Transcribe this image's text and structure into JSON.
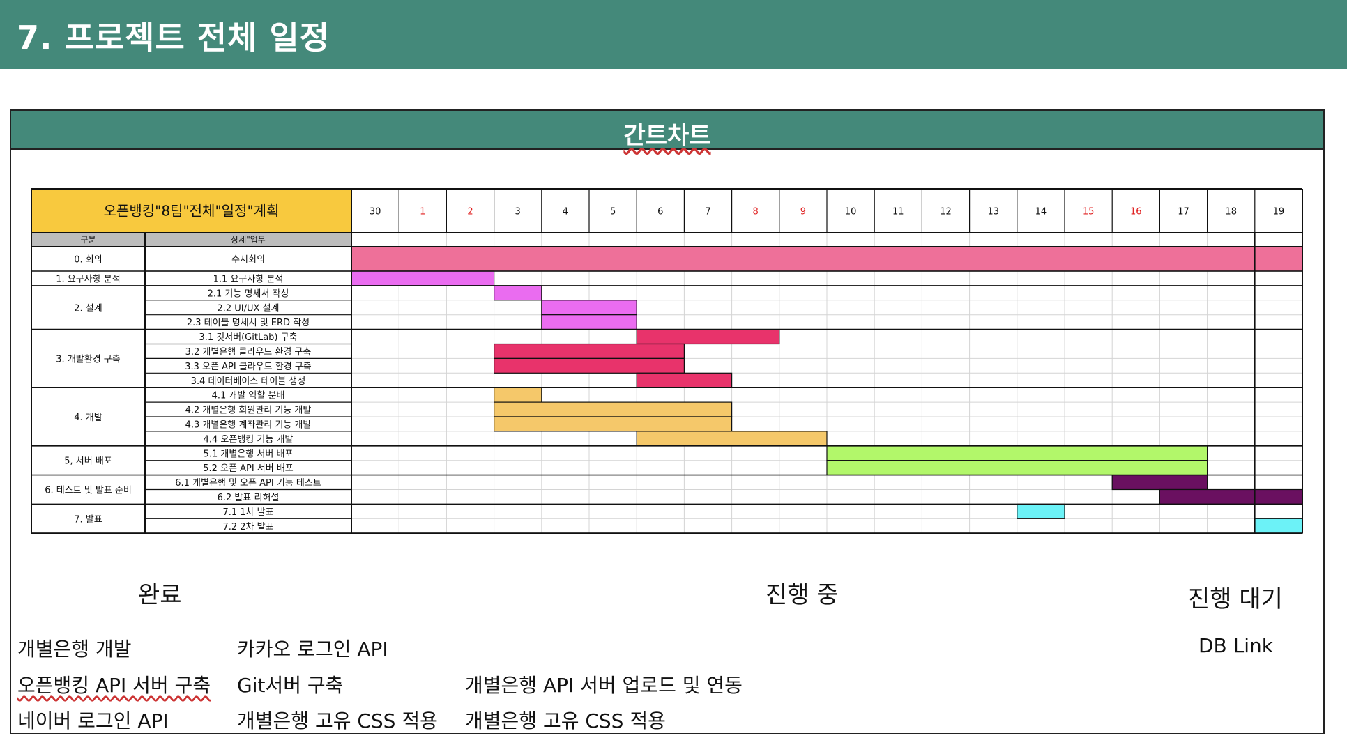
{
  "page_title": "7. 프로젝트 전체 일정",
  "section_title": "간트차트",
  "chart_data": {
    "type": "gantt",
    "title": "오픈뱅킹\"8팀\"전체\"일정\"계획",
    "column_headers": [
      "구분",
      "상세\"업무"
    ],
    "days": [
      "30",
      "1",
      "2",
      "3",
      "4",
      "5",
      "6",
      "7",
      "8",
      "9",
      "10",
      "11",
      "12",
      "13",
      "14",
      "15",
      "16",
      "17",
      "18",
      "19"
    ],
    "holiday_days": [
      "1",
      "2",
      "8",
      "9",
      "15",
      "16"
    ],
    "day_colors": {
      "normal": "#111111",
      "holiday": "#e02020"
    },
    "groups": [
      {
        "label": "0. 회의",
        "rows": 1
      },
      {
        "label": "1. 요구사항 분석",
        "rows": 1
      },
      {
        "label": "2. 설계",
        "rows": 3
      },
      {
        "label": "3. 개발환경 구축",
        "rows": 4
      },
      {
        "label": "4. 개발",
        "rows": 4
      },
      {
        "label": "5, 서버 배포",
        "rows": 2
      },
      {
        "label": "6. 테스트 및 발표 준비",
        "rows": 2
      },
      {
        "label": "7. 발표",
        "rows": 2
      }
    ],
    "tasks": [
      {
        "name": "수시회의",
        "start": 0,
        "end": 20,
        "color": "#ee7099"
      },
      {
        "name": "1.1 요구사항 분석",
        "start": 0,
        "end": 3,
        "color": "#ea6cf0"
      },
      {
        "name": "2.1 기능 명세서 작성",
        "start": 3,
        "end": 4,
        "color": "#ea6cf0"
      },
      {
        "name": "2.2 UI/UX 설계",
        "start": 4,
        "end": 6,
        "color": "#ea6cf0"
      },
      {
        "name": "2.3 테이블 명세서 및 ERD 작성",
        "start": 4,
        "end": 6,
        "color": "#ea6cf0"
      },
      {
        "name": "3.1 깃서버(GitLab) 구축",
        "start": 6,
        "end": 9,
        "color": "#e8336b"
      },
      {
        "name": "3.2 개별은행 클라우드 환경 구축",
        "start": 3,
        "end": 7,
        "color": "#e8336b"
      },
      {
        "name": "3.3 오픈 API 클라우드 환경 구축",
        "start": 3,
        "end": 7,
        "color": "#e8336b"
      },
      {
        "name": "3.4 데이터베이스 테이블 생성",
        "start": 6,
        "end": 8,
        "color": "#e8336b"
      },
      {
        "name": "4.1 개발 역할 분배",
        "start": 3,
        "end": 4,
        "color": "#f5c86a"
      },
      {
        "name": "4.2 개별은행 회원관리 기능 개발",
        "start": 3,
        "end": 8,
        "color": "#f5c86a"
      },
      {
        "name": "4.3 개별은행 계좌관리 기능 개발",
        "start": 3,
        "end": 8,
        "color": "#f5c86a"
      },
      {
        "name": "4.4 오픈뱅킹 기능 개발",
        "start": 6,
        "end": 10,
        "color": "#f5c86a"
      },
      {
        "name": "5.1 개별은행 서버 배포",
        "start": 10,
        "end": 18,
        "color": "#b2f76a"
      },
      {
        "name": "5.2 오픈 API 서버 배포",
        "start": 10,
        "end": 18,
        "color": "#b2f76a"
      },
      {
        "name": "6.1 개별은행 및 오픈 API 기능 테스트",
        "start": 16,
        "end": 18,
        "color": "#6a1060"
      },
      {
        "name": "6.2 발표 리허설",
        "start": 17,
        "end": 20,
        "color": "#6a1060"
      },
      {
        "name": "7.1 1차 발표",
        "start": 14,
        "end": 15,
        "color": "#6cf2f7"
      },
      {
        "name": "7.2 2차 발표",
        "start": 19,
        "end": 20,
        "color": "#6cf2f7"
      }
    ]
  },
  "legend": {
    "done_title": "완료",
    "in_progress_title": "진행 중",
    "waiting_title": "진행 대기",
    "done_col1": [
      "개별은행 개발",
      "오픈뱅킹 API 서버 구축",
      "네이버 로그인 API"
    ],
    "done_col2": [
      "카카오 로그인 API",
      "Git서버 구축",
      "개별은행 고유 CSS 적용"
    ],
    "in_progress": [
      "개별은행 API 서버 업로드 및 연동",
      "개별은행 고유 CSS 적용"
    ],
    "waiting": [
      "DB Link"
    ]
  }
}
